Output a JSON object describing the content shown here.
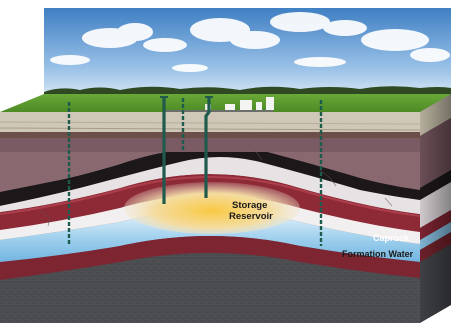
{
  "labels": {
    "storage_reservoir_line1": "Storage",
    "storage_reservoir_line2": "Reservoir",
    "caprock": "Caprock",
    "formation_water": "Formation Water"
  },
  "colors": {
    "sky_top": "#4a87c7",
    "sky_bottom": "#c9def2",
    "grass": "#5a9a2e",
    "topsoil": "#cfc7b4",
    "dark_band": "#2a2324",
    "mauve_rock": "#8a6a72",
    "white_rock": "#e6e2e4",
    "caprock": "#8e2a36",
    "reservoir_glow": "#f3b73a",
    "formation_water": "#8fc6e6",
    "bedrock": "#4a4b4f",
    "pipe": "#1f5a4c"
  }
}
